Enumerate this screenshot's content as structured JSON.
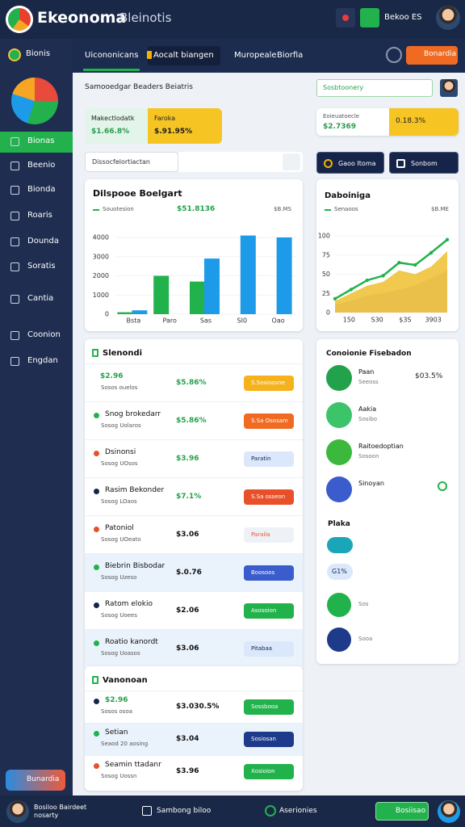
{
  "topbar": {
    "brand": "Ekeonoma",
    "subtitle": "Bleinotis",
    "button": "Bekoo ES"
  },
  "sidebar": {
    "workspace": "Bionis",
    "menu": [
      "Bionas",
      "Beenio",
      "Bionda",
      "Roaris",
      "Dounda",
      "Soratis",
      "Cantia",
      "Coonion",
      "Engdan"
    ],
    "cta": "Bunardia"
  },
  "nav": {
    "tabs": [
      "Uicononicans",
      "Aocalt biangen",
      "Muropeale",
      "Biorfia"
    ],
    "cta": "Bonardia"
  },
  "header": {
    "breadcrumb": "Samooedgar Beaders Beiatris",
    "search": "Sosbtoonery"
  },
  "kpis": [
    {
      "label": "Makectlodatk",
      "value": "$1.66.8%"
    },
    {
      "label": "Faroka",
      "value": "$.91.95%"
    }
  ],
  "kpi_right": {
    "label": "Eoieuatoecle",
    "value": "$2.7369",
    "badge": "0.18.3%"
  },
  "filter": {
    "placeholder": "Dissocfelortiactan"
  },
  "actions": [
    "Gaoo Itoma",
    "Sonbom"
  ],
  "bar_chart": {
    "type": "bar",
    "title": "Dilspooe Boelgart",
    "legend": "Souotesion",
    "total": "$51.8136",
    "aux": "$B.MS",
    "categories": [
      "Bsta",
      "Paro",
      "Sas",
      "SI0",
      "Oao"
    ],
    "series": [
      {
        "color": "#22b24c",
        "values": [
          100,
          2000,
          1700,
          null,
          null
        ]
      },
      {
        "color": "#1e9be8",
        "values": [
          200,
          null,
          2900,
          4100,
          4000
        ]
      }
    ],
    "ylim": [
      0,
      4000
    ],
    "yticks": [
      0,
      1000,
      2000,
      3000,
      4000
    ]
  },
  "area_chart": {
    "type": "area",
    "title": "Daboiniga",
    "legend": "Senaoos",
    "aux": "$B.ME",
    "categories": [
      "150",
      "S30",
      "$3S",
      "3903"
    ],
    "series": [
      {
        "color": "#b08ac8",
        "values": [
          10,
          15,
          22,
          25,
          30,
          35,
          45,
          55
        ]
      },
      {
        "color": "#f0c33c",
        "values": [
          15,
          25,
          35,
          40,
          55,
          50,
          60,
          80
        ]
      },
      {
        "color": "#22b24c",
        "values": [
          18,
          30,
          42,
          48,
          65,
          62,
          78,
          95
        ]
      }
    ],
    "ylim": [
      0,
      100
    ],
    "yticks": [
      0,
      25,
      50,
      75,
      100
    ]
  },
  "list": {
    "title": "Slenondi",
    "rows": [
      {
        "name": "$2.96",
        "sub": "Sosos ouelos",
        "amount": "$5.86%",
        "badge": "S.Sosioosne"
      },
      {
        "name": "Snog brokedarr",
        "sub": "Sosog Uolaros",
        "amount": "$5.86%",
        "badge": "S.Sa Ososam"
      },
      {
        "name": "Dsinonsi",
        "sub": "Sosog UOsos",
        "amount": "$3.96",
        "badge": "Paratin"
      },
      {
        "name": "Rasim Bekonder",
        "sub": "Sosog LOaos",
        "amount": "$7.1%",
        "badge": "S.Sa osseon"
      },
      {
        "name": "Patoniol",
        "sub": "Sosog UOeato",
        "amount": "$3.06",
        "badge": "Paraila"
      },
      {
        "name": "Biebrin Bisbodar",
        "sub": "Sosog Uzeso",
        "amount": "$.0.76",
        "badge": "Boosoos"
      },
      {
        "name": "Ratom elokio",
        "sub": "Sosog Uoees",
        "amount": "$2.06",
        "badge": "Asosoion"
      },
      {
        "name": "Roatio kanordt",
        "sub": "Sosog Uoasos",
        "amount": "$3.06",
        "badge": "Pitabaa"
      }
    ]
  },
  "list2": {
    "title": "Vanonoan",
    "rows": [
      {
        "name": "$2.96",
        "sub": "Sosos osoa",
        "amount": "$3.030.5%",
        "badge": "Sossbooa"
      },
      {
        "name": "Setian",
        "sub": "Seaod 20 aosing",
        "amount": "$3.04",
        "badge": "Sosiosan"
      },
      {
        "name": "Seamin ttadanr",
        "sub": "Sosog Uossn",
        "amount": "$3.96",
        "badge": "Xosioion"
      }
    ]
  },
  "feed": {
    "title": "Conoionie Fisebadon",
    "rows": [
      {
        "name": "Paan",
        "sub": "Seeoss",
        "amount": "$03.5%"
      },
      {
        "name": "Aakia",
        "sub": "Sosibo"
      },
      {
        "name": "Raitoedoptian",
        "sub": "Sosoon"
      },
      {
        "name": "Sinoyan"
      }
    ],
    "section": "Plaka",
    "pill": "G1%",
    "items": [
      "Sos",
      "Sooa"
    ]
  },
  "footer": {
    "user": "Bosiloo Bairdeet nosarty",
    "check": "Sambong biloo",
    "status": "Aserionies",
    "button": "Bosiisao"
  }
}
